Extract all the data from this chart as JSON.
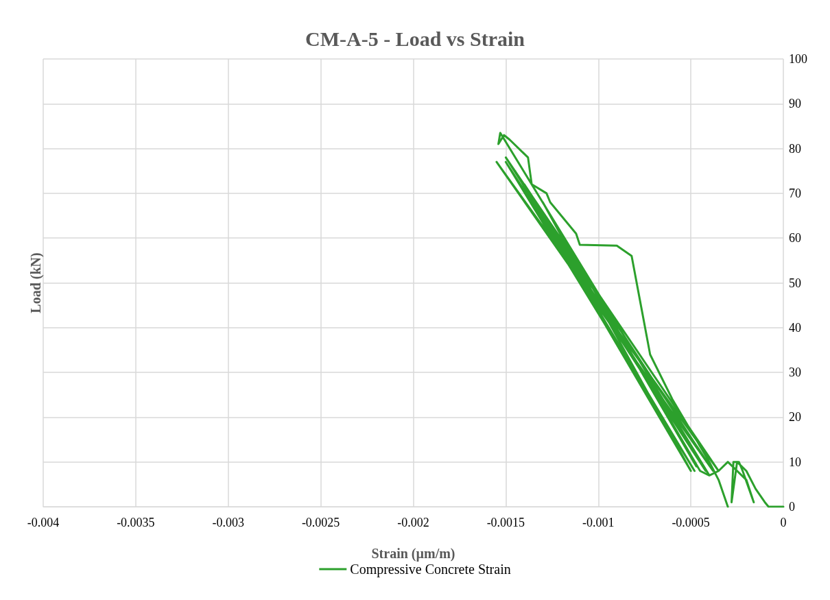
{
  "chart_data": {
    "type": "line",
    "title": "CM-A-5 - Load vs Strain",
    "xlabel": "Strain (µm/m)",
    "ylabel": "Load (kN)",
    "xlim": [
      -0.004,
      0
    ],
    "xticks": [
      -0.004,
      -0.0035,
      -0.003,
      -0.0025,
      -0.002,
      -0.0015,
      -0.001,
      -0.0005,
      0
    ],
    "ylim": [
      0,
      100
    ],
    "yticks": [
      0,
      10,
      20,
      30,
      40,
      50,
      60,
      70,
      80,
      90,
      100
    ],
    "grid": true,
    "legend": "bottom",
    "marker": "none",
    "line_style": "solid",
    "series": [
      {
        "name": "Compressive Concrete Strain",
        "color": "#2ca02c",
        "x": [
          0,
          -3e-05,
          -8e-05,
          -0.0001,
          -0.00015,
          -0.0002,
          -0.00025,
          -0.00028,
          -0.00027,
          -0.00024,
          -0.00022,
          -0.00016,
          -0.0002,
          -0.0003,
          -0.00035,
          -0.0004,
          -0.00045,
          -0.0012,
          -0.00047,
          -0.0013,
          -0.0005,
          -0.00145,
          -0.00048,
          -0.0015,
          -0.00042,
          -0.0014,
          -0.00038,
          -0.00155,
          -0.00035,
          -0.0015,
          -0.0004,
          -0.00153,
          -0.00154,
          -0.00151,
          -0.00148,
          -0.00138,
          -0.00136,
          -0.00128,
          -0.00126,
          -0.00112,
          -0.0011,
          -0.0009,
          -0.00082,
          -0.00077,
          -0.00072,
          -0.0006,
          -0.0004,
          -0.00035,
          -0.0003
        ],
        "values": [
          0,
          0,
          0,
          1,
          4,
          8,
          10,
          1,
          10,
          10,
          8,
          1,
          6,
          10,
          8,
          7,
          8,
          61,
          9,
          68,
          8,
          75,
          8,
          77,
          8,
          72,
          8,
          77,
          8,
          78,
          7,
          83.5,
          81,
          83,
          82,
          78,
          72,
          70,
          68,
          61,
          58.5,
          58.3,
          56,
          45,
          34,
          24,
          10,
          6,
          0
        ]
      }
    ]
  }
}
